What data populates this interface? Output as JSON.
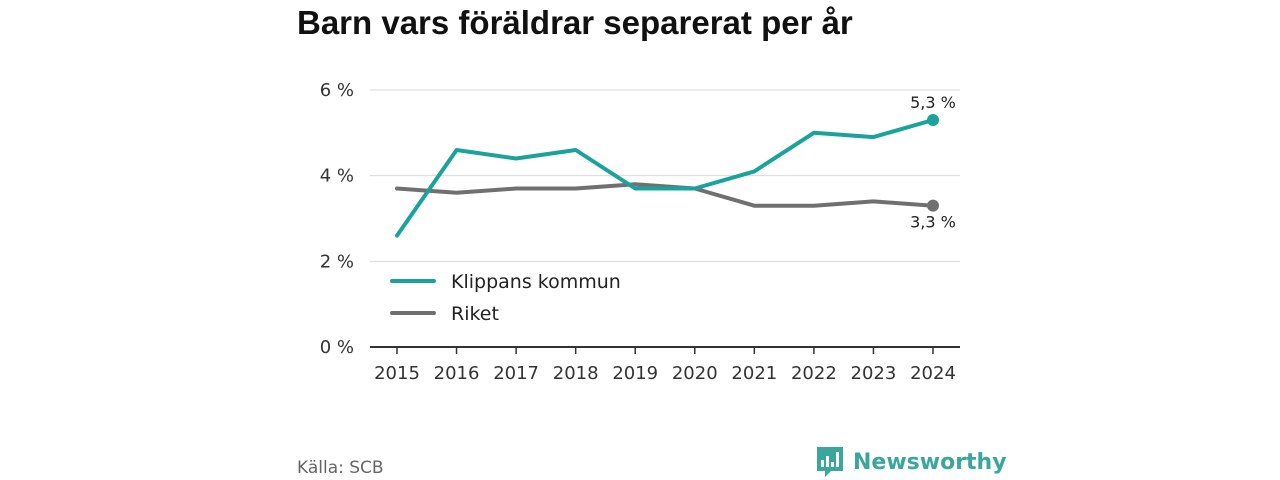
{
  "title": "Barn vars föräldrar separerat per år",
  "source": "Källa: SCB",
  "brand": {
    "name": "Newsworthy",
    "logo_icon": "bar-chart-speech-bubble-icon",
    "color": "#3aa79c"
  },
  "colors": {
    "klippan": "#1aa39a",
    "riket": "#707070"
  },
  "chart_data": {
    "type": "line",
    "title": "Barn vars föräldrar separerat per år",
    "x": [
      2015,
      2016,
      2017,
      2018,
      2019,
      2020,
      2021,
      2022,
      2023,
      2024
    ],
    "x_tick_labels": [
      "2015",
      "2016",
      "2017",
      "2018",
      "2019",
      "2020",
      "2021",
      "2022",
      "2023",
      "2024"
    ],
    "y_ticks": [
      0,
      2,
      4,
      6
    ],
    "y_tick_labels": [
      "0 %",
      "2 %",
      "4 %",
      "6 %"
    ],
    "ylim": [
      0,
      6
    ],
    "grid": true,
    "legend_position": "bottom-left",
    "series": [
      {
        "name": "Klippans kommun",
        "color": "#1aa39a",
        "values": [
          2.6,
          4.6,
          4.4,
          4.6,
          3.7,
          3.7,
          4.1,
          5.0,
          4.9,
          5.3
        ],
        "end_label": "5,3 %"
      },
      {
        "name": "Riket",
        "color": "#707070",
        "values": [
          3.7,
          3.6,
          3.7,
          3.7,
          3.8,
          3.7,
          3.3,
          3.3,
          3.4,
          3.3
        ],
        "end_label": "3,3 %"
      }
    ]
  }
}
